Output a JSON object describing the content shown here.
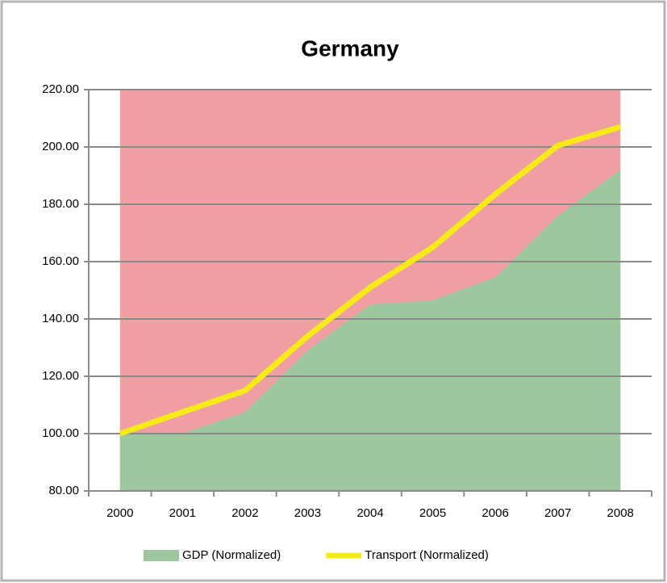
{
  "chart_data": {
    "type": "area_line",
    "title": "Germany",
    "categories": [
      "2000",
      "2001",
      "2002",
      "2003",
      "2004",
      "2005",
      "2006",
      "2007",
      "2008"
    ],
    "series": [
      {
        "name": "GDP (Normalized)",
        "type": "area",
        "color": "#9dc89d",
        "values": [
          100,
          100,
          107.5,
          129,
          145,
          146.5,
          154.5,
          176,
          192
        ]
      },
      {
        "name": "Transport (Normalized)",
        "type": "line",
        "color": "#f6eb16",
        "values": [
          100,
          107.5,
          115,
          134,
          151,
          165,
          183.5,
          200.5,
          207
        ]
      }
    ],
    "plot_background_color": "#ef9fa1",
    "ylim": [
      80,
      220
    ],
    "yticks": [
      {
        "value": 80,
        "label": "80.00"
      },
      {
        "value": 100,
        "label": "100.00"
      },
      {
        "value": 120,
        "label": "120.00"
      },
      {
        "value": 140,
        "label": "140.00"
      },
      {
        "value": 160,
        "label": "160.00"
      },
      {
        "value": 180,
        "label": "180.00"
      },
      {
        "value": 200,
        "label": "200.00"
      },
      {
        "value": 220,
        "label": "220.00"
      }
    ],
    "grid": true,
    "legend": "bottom"
  }
}
